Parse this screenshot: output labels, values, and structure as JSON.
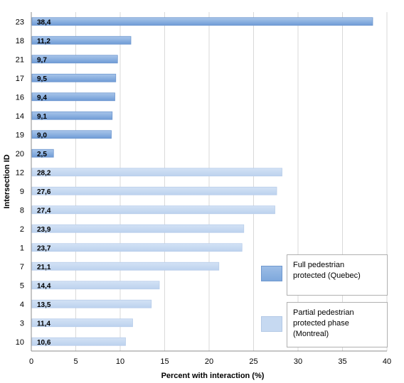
{
  "chart_data": {
    "type": "bar",
    "orientation": "horizontal",
    "categories": [
      "23",
      "18",
      "21",
      "17",
      "16",
      "14",
      "19",
      "20",
      "12",
      "9",
      "8",
      "2",
      "1",
      "7",
      "5",
      "4",
      "3",
      "10"
    ],
    "values": [
      38.4,
      11.2,
      9.7,
      9.5,
      9.4,
      9.1,
      9.0,
      2.5,
      28.2,
      27.6,
      27.4,
      23.9,
      23.7,
      21.1,
      14.4,
      13.5,
      11.4,
      10.6
    ],
    "value_labels": [
      "38,4",
      "11,2",
      "9,7",
      "9,5",
      "9,4",
      "9,1",
      "9,0",
      "2,5",
      "28,2",
      "27,6",
      "27,4",
      "23,9",
      "23,7",
      "21,1",
      "14,4",
      "13,5",
      "11,4",
      "10,6"
    ],
    "bar_group": [
      "quebec",
      "quebec",
      "quebec",
      "quebec",
      "quebec",
      "quebec",
      "quebec",
      "quebec",
      "montreal",
      "montreal",
      "montreal",
      "montreal",
      "montreal",
      "montreal",
      "montreal",
      "montreal",
      "montreal",
      "montreal"
    ],
    "series": [
      {
        "key": "quebec",
        "name": "Full pedestrian protected (Quebec)",
        "legend_lines": [
          "Full pedestrian",
          "protected (Quebec)"
        ],
        "color": "#8db3e2"
      },
      {
        "key": "montreal",
        "name": "Partial pedestrian protected phase (Montreal)",
        "legend_lines": [
          "Partial pedestrian",
          "protected phase",
          "(Montreal)"
        ],
        "color": "#c6d9f1"
      }
    ],
    "xlabel": "Percent with interaction (%)",
    "ylabel": "Intersection ID",
    "xlim": [
      0,
      40
    ],
    "xticks": [
      0,
      5,
      10,
      15,
      20,
      25,
      30,
      35,
      40
    ],
    "grid": true,
    "legend_position": "right"
  }
}
